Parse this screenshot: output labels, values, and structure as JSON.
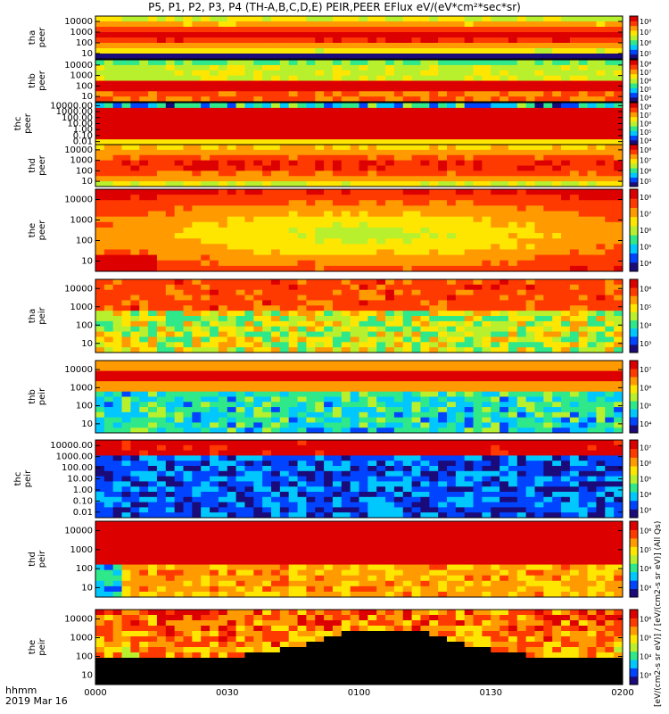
{
  "title": "P5, P1, P2, P3, P4 (TH-A,B,C,D,E) PEIR,PEER EFlux eV/(eV*cm²*sec*sr)",
  "footer": {
    "time_label": "hhmm",
    "date_label": "2019 Mar 16"
  },
  "colorbar_title": "[eV/(cm2-s sr eV)] / [eV/(cm2-s sr eV)] (All Qs)",
  "chart_data": {
    "type": "heatmap",
    "x_ticks": [
      "0000",
      "0030",
      "0100",
      "0130",
      "0200"
    ],
    "x_range": [
      "00:00",
      "02:00"
    ],
    "panels": [
      {
        "name": "tha\npeer",
        "lines": [
          "tha",
          "peer"
        ],
        "yticks": [
          "10",
          "100",
          "1000",
          "10000"
        ],
        "ylog": true,
        "cbar_ticks": [
          "10⁵",
          "10⁶",
          "10⁷",
          "10⁸"
        ]
      },
      {
        "name": "thb\npeer",
        "lines": [
          "thb",
          "peer"
        ],
        "yticks": [
          "10",
          "100",
          "1000",
          "10000"
        ],
        "ylog": true,
        "cbar_ticks": [
          "10⁴",
          "10⁵",
          "10⁶",
          "10⁷",
          "10⁸"
        ]
      },
      {
        "name": "thc\npeer",
        "lines": [
          "thc",
          "peer"
        ],
        "yticks": [
          "0.01",
          "0.10",
          "1.00",
          "10.00",
          "100.00",
          "1000.00",
          "10000.00"
        ],
        "ylog": true,
        "cbar_ticks": [
          "10⁴",
          "10⁵",
          "10⁶",
          "10⁷",
          "10⁸"
        ]
      },
      {
        "name": "thd\npeer",
        "lines": [
          "thd",
          "peer"
        ],
        "yticks": [
          "10",
          "100",
          "1000",
          "10000"
        ],
        "ylog": true,
        "cbar_ticks": [
          "10⁵",
          "10⁶",
          "10⁷",
          "10⁸"
        ]
      },
      {
        "name": "the\npeer",
        "lines": [
          "the",
          "peer"
        ],
        "yticks": [
          "10",
          "100",
          "1000",
          "10000"
        ],
        "ylog": true,
        "cbar_ticks": [
          "10⁴",
          "10⁵",
          "10⁶",
          "10⁷",
          "10⁸"
        ]
      },
      {
        "name": "tha\npeir",
        "lines": [
          "tha",
          "peir"
        ],
        "yticks": [
          "10",
          "100",
          "1000",
          "10000"
        ],
        "ylog": true,
        "cbar_ticks": [
          "10³",
          "10⁴",
          "10⁵",
          "10⁶"
        ]
      },
      {
        "name": "thb\npeir",
        "lines": [
          "thb",
          "peir"
        ],
        "yticks": [
          "10",
          "100",
          "1000",
          "10000"
        ],
        "ylog": true,
        "cbar_ticks": [
          "10⁴",
          "10⁵",
          "10⁶",
          "10⁷"
        ]
      },
      {
        "name": "thc\npeir",
        "lines": [
          "thc",
          "peir"
        ],
        "yticks": [
          "0.01",
          "0.10",
          "1.00",
          "10.00",
          "100.00",
          "1000.00",
          "10000.00"
        ],
        "ylog": true,
        "cbar_ticks": [
          "10³",
          "10⁴",
          "10⁵",
          "10⁶",
          "10⁷"
        ]
      },
      {
        "name": "thd\npeir",
        "lines": [
          "thd",
          "peir"
        ],
        "yticks": [
          "10",
          "100",
          "1000",
          "10000"
        ],
        "ylog": true,
        "cbar_ticks": [
          "10³",
          "10⁴",
          "10⁵",
          "10⁶"
        ]
      },
      {
        "name": "the\npeir",
        "lines": [
          "the",
          "peir"
        ],
        "yticks": [
          "10",
          "100",
          "1000",
          "10000"
        ],
        "ylog": true,
        "cbar_ticks": [
          "10³",
          "10⁴",
          "10⁵",
          "10⁶"
        ]
      }
    ],
    "colorscale": [
      "#1a0a7a",
      "#0044ff",
      "#00c8ff",
      "#2ee88a",
      "#b8f02e",
      "#ffe600",
      "#ff9a00",
      "#ff3a00",
      "#dd0000"
    ]
  }
}
